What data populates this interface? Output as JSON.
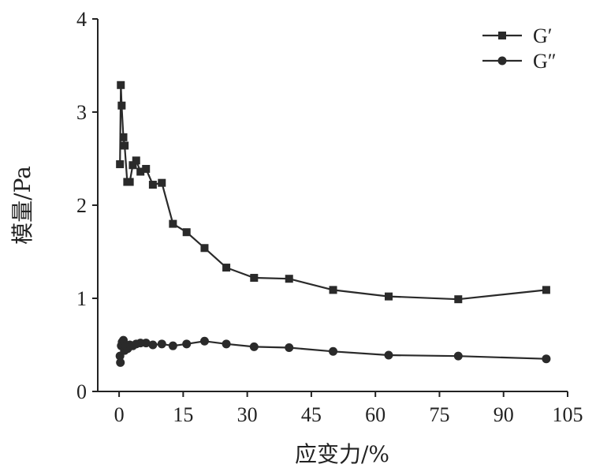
{
  "chart_data": {
    "type": "line",
    "xlabel": "应变力/%",
    "ylabel": "模量/Pa",
    "xlim": [
      -5,
      105
    ],
    "ylim": [
      0,
      4
    ],
    "xticks": [
      0,
      15,
      30,
      45,
      60,
      75,
      90,
      105
    ],
    "yticks": [
      0,
      1,
      2,
      3,
      4
    ],
    "legend_position": "top-right",
    "series": [
      {
        "name": "G′",
        "marker": "square",
        "points": [
          [
            0.2,
            2.44
          ],
          [
            0.4,
            3.29
          ],
          [
            0.6,
            3.07
          ],
          [
            1.0,
            2.73
          ],
          [
            1.3,
            2.64
          ],
          [
            1.9,
            2.25
          ],
          [
            2.5,
            2.25
          ],
          [
            3.2,
            2.43
          ],
          [
            4.0,
            2.48
          ],
          [
            5.0,
            2.36
          ],
          [
            6.3,
            2.39
          ],
          [
            7.9,
            2.22
          ],
          [
            10.0,
            2.24
          ],
          [
            12.6,
            1.8
          ],
          [
            15.8,
            1.71
          ],
          [
            20.0,
            1.54
          ],
          [
            25.1,
            1.33
          ],
          [
            31.6,
            1.22
          ],
          [
            39.8,
            1.21
          ],
          [
            50.1,
            1.09
          ],
          [
            63.1,
            1.02
          ],
          [
            79.4,
            0.99
          ],
          [
            100.0,
            1.09
          ]
        ]
      },
      {
        "name": "G″",
        "marker": "circle",
        "points": [
          [
            0.2,
            0.38
          ],
          [
            0.3,
            0.31
          ],
          [
            0.5,
            0.49
          ],
          [
            0.7,
            0.53
          ],
          [
            1.0,
            0.55
          ],
          [
            1.3,
            0.44
          ],
          [
            1.6,
            0.49
          ],
          [
            2.0,
            0.46
          ],
          [
            2.5,
            0.5
          ],
          [
            3.2,
            0.49
          ],
          [
            4.0,
            0.51
          ],
          [
            5.0,
            0.52
          ],
          [
            6.3,
            0.52
          ],
          [
            7.9,
            0.5
          ],
          [
            10.0,
            0.51
          ],
          [
            12.6,
            0.49
          ],
          [
            15.8,
            0.51
          ],
          [
            20.0,
            0.54
          ],
          [
            25.1,
            0.51
          ],
          [
            31.6,
            0.48
          ],
          [
            39.8,
            0.47
          ],
          [
            50.1,
            0.43
          ],
          [
            63.1,
            0.39
          ],
          [
            79.4,
            0.38
          ],
          [
            100.0,
            0.35
          ]
        ]
      }
    ]
  },
  "style": {
    "line_color": "#2a2a2a",
    "axis_color": "#222222",
    "background": "#ffffff"
  }
}
